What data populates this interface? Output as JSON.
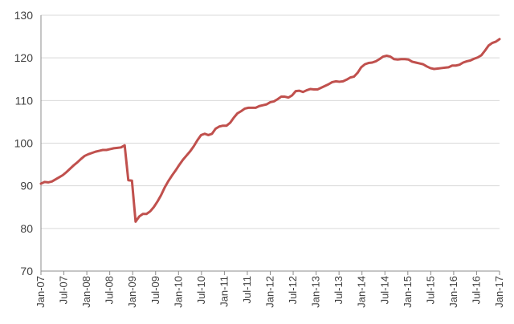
{
  "chart_data": {
    "type": "line",
    "title": "",
    "xlabel": "",
    "ylabel": "",
    "ylim": [
      70,
      130
    ],
    "yticks": [
      70,
      80,
      90,
      100,
      110,
      120,
      130
    ],
    "grid": true,
    "legend": "none",
    "colors": {
      "series": "#c0504d",
      "grid": "#d9d9d9",
      "axis": "#8c8c8c",
      "text": "#404040"
    },
    "xticks": [
      "Jan-07",
      "Jul-07",
      "Jan-08",
      "Jul-08",
      "Jan-09",
      "Jul-09",
      "Jan-10",
      "Jul-10",
      "Jan-11",
      "Jul-11",
      "Jan-12",
      "Jul-12",
      "Jan-13",
      "Jul-13",
      "Jan-14",
      "Jul-14",
      "Jan-15",
      "Jul-15",
      "Jan-16",
      "Jul-16",
      "Jan-17"
    ],
    "series": [
      {
        "values": [
          90.5,
          90.9,
          90.8,
          91.0,
          91.5,
          92.0,
          92.5,
          93.2,
          94.0,
          94.8,
          95.5,
          96.3,
          97.0,
          97.4,
          97.7,
          98.0,
          98.2,
          98.4,
          98.4,
          98.6,
          98.8,
          98.9,
          99.0,
          99.5,
          91.3,
          91.2,
          81.6,
          82.8,
          83.4,
          83.4,
          84.0,
          85.0,
          86.3,
          87.8,
          89.6,
          91.1,
          92.4,
          93.6,
          94.9,
          96.1,
          97.1,
          98.1,
          99.3,
          100.7,
          101.9,
          102.2,
          101.9,
          102.2,
          103.4,
          103.9,
          104.1,
          104.1,
          104.8,
          106.0,
          107.0,
          107.5,
          108.1,
          108.3,
          108.3,
          108.3,
          108.7,
          108.9,
          109.1,
          109.6,
          109.8,
          110.3,
          110.9,
          110.9,
          110.7,
          111.2,
          112.2,
          112.3,
          112.0,
          112.4,
          112.7,
          112.6,
          112.6,
          113.0,
          113.4,
          113.8,
          114.3,
          114.5,
          114.4,
          114.5,
          114.9,
          115.4,
          115.6,
          116.5,
          117.8,
          118.5,
          118.8,
          118.9,
          119.2,
          119.7,
          120.3,
          120.5,
          120.3,
          119.7,
          119.6,
          119.7,
          119.7,
          119.6,
          119.1,
          118.9,
          118.7,
          118.5,
          118.0,
          117.6,
          117.4,
          117.5,
          117.6,
          117.7,
          117.8,
          118.2,
          118.2,
          118.4,
          118.9,
          119.2,
          119.4,
          119.8,
          120.1,
          120.6,
          121.7,
          122.9,
          123.5,
          123.8,
          124.4
        ]
      }
    ]
  }
}
